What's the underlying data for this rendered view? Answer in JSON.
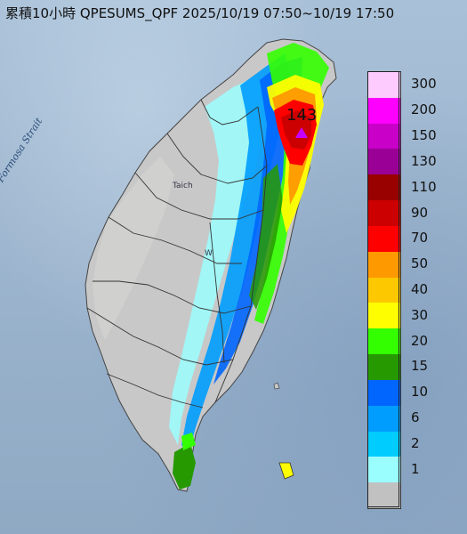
{
  "title": "累積10小時 QPESUMS_QPF 2025/10/19 07:50~10/19 17:50",
  "strait_label": "Formosa Strait",
  "city_labels": {
    "taichung": "Taich",
    "west": "W"
  },
  "peak": {
    "value": "143",
    "marker_color": "#c600ff"
  },
  "legend": {
    "unit_hint": "",
    "classes": [
      {
        "label": "300",
        "color": "#fdcbfd"
      },
      {
        "label": "200",
        "color": "#fe00fe"
      },
      {
        "label": "150",
        "color": "#c800c8"
      },
      {
        "label": "130",
        "color": "#9a0096"
      },
      {
        "label": "110",
        "color": "#990000"
      },
      {
        "label": "90",
        "color": "#cc0000"
      },
      {
        "label": "70",
        "color": "#fe0000"
      },
      {
        "label": "50",
        "color": "#fe9900"
      },
      {
        "label": "40",
        "color": "#fec800"
      },
      {
        "label": "30",
        "color": "#fefe00"
      },
      {
        "label": "20",
        "color": "#33ff00"
      },
      {
        "label": "15",
        "color": "#269900"
      },
      {
        "label": "10",
        "color": "#0066fe"
      },
      {
        "label": "6",
        "color": "#009dfe"
      },
      {
        "label": "2",
        "color": "#00ccfe"
      },
      {
        "label": "1",
        "color": "#9bfefe"
      },
      {
        "label": "",
        "color": "#c1c1c1"
      }
    ]
  },
  "land_color": "#c8c8c8",
  "sea_colors": [
    "#a9c1d8",
    "#8fa9c4"
  ]
}
